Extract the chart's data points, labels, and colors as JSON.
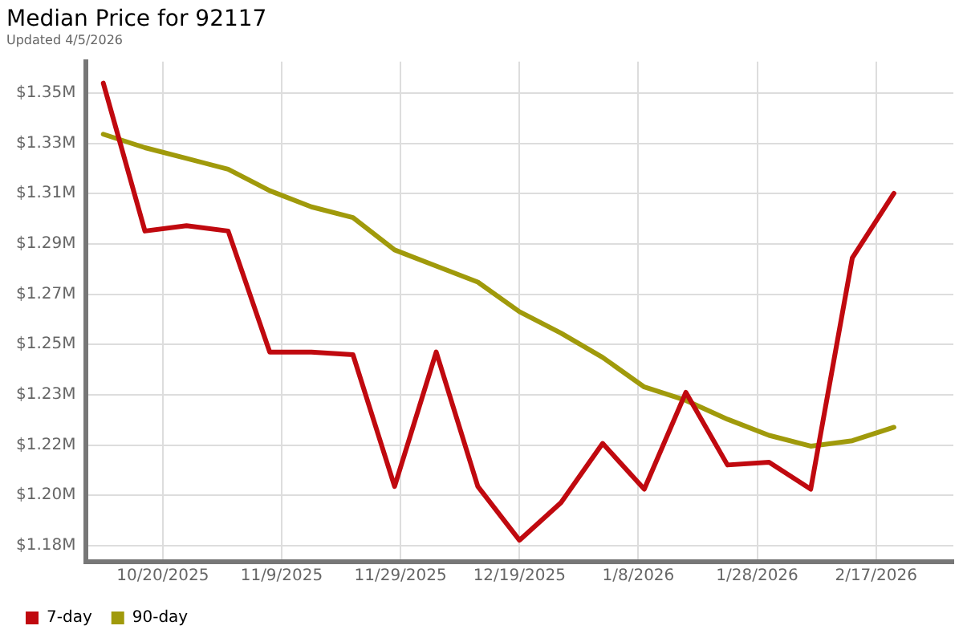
{
  "chart_data": {
    "type": "line",
    "title": "Median Price for 92117",
    "subtitle": "Updated 4/5/2026",
    "x": [
      "2025-10-10",
      "2025-10-17",
      "2025-10-24",
      "2025-10-31",
      "2025-11-07",
      "2025-11-14",
      "2025-11-21",
      "2025-11-28",
      "2025-12-05",
      "2025-12-12",
      "2025-12-19",
      "2025-12-26",
      "2026-01-02",
      "2026-01-09",
      "2026-01-16",
      "2026-01-23",
      "2026-01-30",
      "2026-02-06",
      "2026-02-13",
      "2026-02-20"
    ],
    "series": [
      {
        "name": "7-day",
        "color": "#c0090f",
        "values": [
          1.35,
          1.295,
          1.297,
          1.295,
          1.25,
          1.25,
          1.249,
          1.2,
          1.25,
          1.2,
          1.18,
          1.194,
          1.216,
          1.199,
          1.235,
          1.208,
          1.209,
          1.199,
          1.285,
          1.309
        ]
      },
      {
        "name": "90-day",
        "color": "#a09a0b",
        "values": [
          1.331,
          1.326,
          1.322,
          1.318,
          1.31,
          1.304,
          1.3,
          1.288,
          1.282,
          1.276,
          1.265,
          1.257,
          1.248,
          1.237,
          1.232,
          1.225,
          1.219,
          1.215,
          1.217,
          1.222
        ]
      }
    ],
    "xlim": [
      "2025-10-07",
      "2026-03-02"
    ],
    "xticks": [
      {
        "value": "2025-10-20",
        "label": "10/20/2025"
      },
      {
        "value": "2025-11-09",
        "label": "11/9/2025"
      },
      {
        "value": "2025-11-29",
        "label": "11/29/2025"
      },
      {
        "value": "2025-12-19",
        "label": "12/19/2025"
      },
      {
        "value": "2026-01-08",
        "label": "1/8/2026"
      },
      {
        "value": "2026-01-28",
        "label": "1/28/2026"
      },
      {
        "value": "2026-02-17",
        "label": "2/17/2026"
      }
    ],
    "ylim": [
      1.172,
      1.358
    ],
    "yticks": [
      {
        "value": 1.178,
        "label": "$1.18M"
      },
      {
        "value": 1.1967,
        "label": "$1.20M"
      },
      {
        "value": 1.2154,
        "label": "$1.22M"
      },
      {
        "value": 1.2341,
        "label": "$1.23M"
      },
      {
        "value": 1.2528,
        "label": "$1.25M"
      },
      {
        "value": 1.2715,
        "label": "$1.27M"
      },
      {
        "value": 1.2902,
        "label": "$1.29M"
      },
      {
        "value": 1.3089,
        "label": "$1.31M"
      },
      {
        "value": 1.3276,
        "label": "$1.33M"
      },
      {
        "value": 1.3463,
        "label": "$1.35M"
      }
    ],
    "grid": true,
    "legend": "bottom left",
    "marker": "none",
    "line_style": "solid"
  }
}
